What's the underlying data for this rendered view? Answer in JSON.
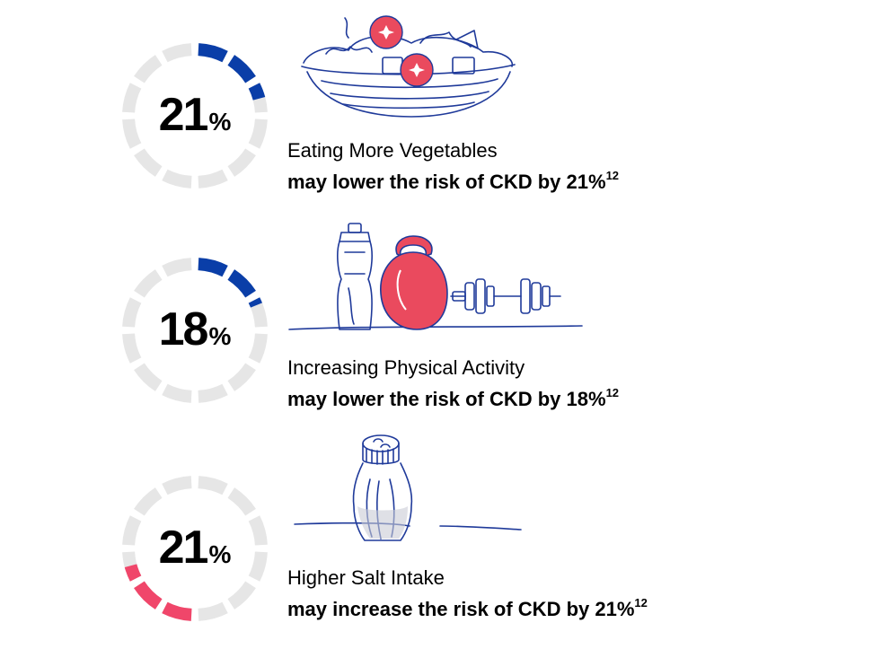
{
  "items": [
    {
      "percent": "21",
      "percent_symbol": "%",
      "fill_fraction": 0.21,
      "accent": "#0a3ea8",
      "title": "Eating More Vegetables",
      "statement": "may lower the risk of CKD by 21%",
      "reference": "12",
      "icon": "salad-bowl-icon"
    },
    {
      "percent": "18",
      "percent_symbol": "%",
      "fill_fraction": 0.18,
      "accent": "#0a3ea8",
      "title": "Increasing Physical Activity",
      "statement": "may lower the risk of CKD by 18%",
      "reference": "12",
      "icon": "fitness-equipment-icon"
    },
    {
      "percent": "21",
      "percent_symbol": "%",
      "fill_fraction": 0.21,
      "accent": "#f0466a",
      "title": "Higher Salt Intake",
      "statement": "may increase the risk of CKD by 21%",
      "reference": "12",
      "icon": "salt-shaker-icon"
    }
  ],
  "ring_track_color": "#e6e6e6"
}
